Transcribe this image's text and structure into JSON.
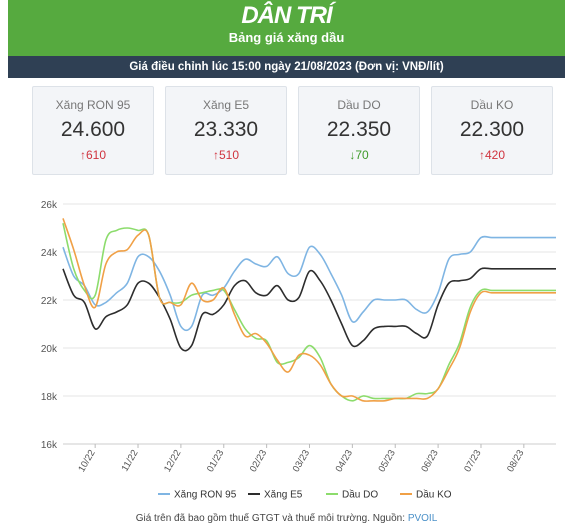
{
  "header": {
    "brand": "DÂN TRÍ",
    "subtitle": "Bảng giá xăng dầu",
    "notice": "Giá điều chỉnh lúc 15:00 ngày 21/08/2023 (Đơn vị: VNĐ/lít)"
  },
  "cards": [
    {
      "name": "Xăng RON 95",
      "price": "24.600",
      "change": "610",
      "direction": "up"
    },
    {
      "name": "Xăng E5",
      "price": "23.330",
      "change": "510",
      "direction": "up"
    },
    {
      "name": "Dầu DO",
      "price": "22.350",
      "change": "70",
      "direction": "down"
    },
    {
      "name": "Dầu KO",
      "price": "22.300",
      "change": "420",
      "direction": "up"
    }
  ],
  "colors": {
    "brand_green": "#56aa3f",
    "notice_bar": "#2f4054",
    "up": "#d0343f",
    "down": "#3e9a2a",
    "ron95": "#7fb5e3",
    "e5": "#2d2d2d",
    "do": "#8cdc6c",
    "ko": "#f0a046"
  },
  "chart_data": {
    "type": "line",
    "title": "",
    "xlabel": "",
    "ylabel": "",
    "ylim": [
      16,
      26
    ],
    "yticks": [
      16,
      18,
      20,
      22,
      24,
      26
    ],
    "ytick_labels": [
      "16k",
      "18k",
      "20k",
      "22k",
      "24k",
      "26k"
    ],
    "xlim": [
      0,
      23
    ],
    "xticks": [
      1.5,
      3.5,
      5.5,
      7.5,
      9.5,
      11.5,
      13.5,
      15.5,
      17.5,
      19.5,
      21.5
    ],
    "xtick_labels": [
      "10/22",
      "11/22",
      "12/22",
      "01/23",
      "02/23",
      "03/23",
      "04/23",
      "05/23",
      "06/23",
      "07/23",
      "08/23"
    ],
    "grid": "horizontal",
    "legend": "bottom",
    "series": [
      {
        "name": "Xăng RON 95",
        "color": "#7fb5e3",
        "x": [
          0,
          0.5,
          1,
          1.5,
          2,
          2.5,
          3,
          3.5,
          4,
          4.5,
          5,
          5.5,
          6,
          6.5,
          7,
          7.5,
          8,
          8.5,
          9,
          9.5,
          10,
          10.5,
          11,
          11.5,
          12,
          12.5,
          13,
          13.5,
          14,
          14.5,
          15,
          15.5,
          16,
          16.5,
          17,
          17.5,
          18,
          18.5,
          19,
          19.5,
          20,
          20.5,
          21,
          21.5,
          22,
          22.5,
          23
        ],
        "values": [
          24.2,
          23.0,
          22.6,
          21.8,
          21.9,
          22.3,
          22.7,
          23.8,
          23.8,
          23.2,
          22.2,
          20.9,
          20.9,
          22.2,
          22.2,
          22.5,
          23.2,
          23.7,
          23.5,
          23.4,
          23.8,
          23.1,
          23.1,
          24.2,
          23.9,
          23.1,
          22.2,
          21.1,
          21.5,
          22.0,
          22.0,
          22.0,
          22.0,
          21.6,
          21.5,
          22.3,
          23.7,
          23.9,
          24.0,
          24.6,
          24.6,
          24.6,
          24.6,
          24.6,
          24.6,
          24.6,
          24.6
        ]
      },
      {
        "name": "Xăng E5",
        "color": "#2d2d2d",
        "x": [
          0,
          0.5,
          1,
          1.5,
          2,
          2.5,
          3,
          3.5,
          4,
          4.5,
          5,
          5.5,
          6,
          6.5,
          7,
          7.5,
          8,
          8.5,
          9,
          9.5,
          10,
          10.5,
          11,
          11.5,
          12,
          12.5,
          13,
          13.5,
          14,
          14.5,
          15,
          15.5,
          16,
          16.5,
          17,
          17.5,
          18,
          18.5,
          19,
          19.5,
          20,
          20.5,
          21,
          21.5,
          22,
          22.5,
          23
        ],
        "values": [
          23.3,
          22.2,
          21.9,
          20.8,
          21.3,
          21.5,
          21.8,
          22.7,
          22.7,
          22.1,
          21.2,
          20.0,
          20.1,
          21.4,
          21.4,
          21.8,
          22.6,
          22.8,
          22.3,
          22.2,
          22.6,
          22.0,
          22.1,
          23.2,
          22.8,
          22.0,
          21.0,
          20.1,
          20.3,
          20.8,
          20.9,
          20.9,
          20.9,
          20.6,
          20.5,
          21.8,
          22.7,
          22.8,
          22.9,
          23.3,
          23.3,
          23.3,
          23.3,
          23.3,
          23.3,
          23.3,
          23.3
        ]
      },
      {
        "name": "Dầu DO",
        "color": "#8cdc6c",
        "x": [
          0,
          0.5,
          1,
          1.5,
          2,
          2.5,
          3,
          3.5,
          4,
          4.5,
          5,
          5.5,
          6,
          6.5,
          7,
          7.5,
          8,
          8.5,
          9,
          9.5,
          10,
          10.5,
          11,
          11.5,
          12,
          12.5,
          13,
          13.5,
          14,
          14.5,
          15,
          15.5,
          16,
          16.5,
          17,
          17.5,
          18,
          18.5,
          19,
          19.5,
          20,
          20.5,
          21,
          21.5,
          22,
          22.5,
          23
        ],
        "values": [
          25.2,
          23.3,
          22.4,
          22.2,
          24.5,
          24.9,
          25.0,
          24.9,
          24.7,
          22.1,
          21.9,
          21.9,
          22.2,
          22.3,
          22.4,
          22.4,
          21.6,
          20.8,
          20.4,
          20.3,
          19.4,
          19.4,
          19.6,
          20.1,
          19.6,
          18.5,
          18.0,
          17.8,
          18.0,
          17.9,
          17.9,
          17.9,
          17.9,
          18.1,
          18.1,
          18.3,
          19.3,
          20.2,
          21.7,
          22.4,
          22.4,
          22.4,
          22.4,
          22.4,
          22.4,
          22.4,
          22.4
        ]
      },
      {
        "name": "Dầu KO",
        "color": "#f0a046",
        "x": [
          0,
          0.5,
          1,
          1.5,
          2,
          2.5,
          3,
          3.5,
          4,
          4.5,
          5,
          5.5,
          6,
          6.5,
          7,
          7.5,
          8,
          8.5,
          9,
          9.5,
          10,
          10.5,
          11,
          11.5,
          12,
          12.5,
          13,
          13.5,
          14,
          14.5,
          15,
          15.5,
          16,
          16.5,
          17,
          17.5,
          18,
          18.5,
          19,
          19.5,
          20,
          20.5,
          21,
          21.5,
          22,
          22.5,
          23
        ],
        "values": [
          25.4,
          24.1,
          22.6,
          21.7,
          23.5,
          24.0,
          24.1,
          24.7,
          24.7,
          22.1,
          21.9,
          21.8,
          22.7,
          22.0,
          22.0,
          22.5,
          21.4,
          20.5,
          20.6,
          20.2,
          19.5,
          19.0,
          19.7,
          19.7,
          19.3,
          18.5,
          18.0,
          18.0,
          17.8,
          17.8,
          17.8,
          17.9,
          17.9,
          17.9,
          17.9,
          18.3,
          19.1,
          20.0,
          21.5,
          22.3,
          22.3,
          22.3,
          22.3,
          22.3,
          22.3,
          22.3,
          22.3
        ]
      }
    ]
  },
  "footnote": {
    "text": "Giá trên đã bao gồm thuế GTGT và thuế môi trường. Nguồn: ",
    "source": "PVOIL"
  }
}
